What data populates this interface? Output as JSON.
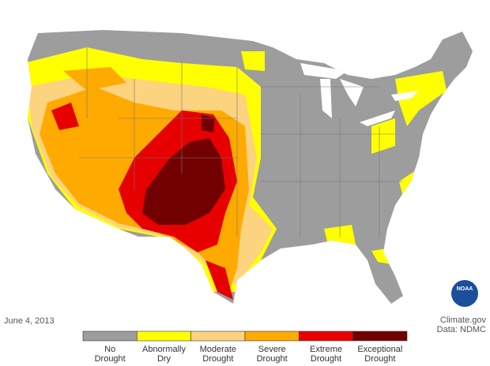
{
  "map": {
    "date": "June 4, 2013",
    "credits": [
      "Climate.gov",
      "Data: NDMC"
    ],
    "logo": "NOAA",
    "legend": [
      {
        "label": [
          "No",
          "Drought"
        ],
        "color": "#9d9d9d"
      },
      {
        "label": [
          "Abnormally",
          "Dry"
        ],
        "color": "#ffff00"
      },
      {
        "label": [
          "Moderate",
          "Drought"
        ],
        "color": "#fcd37f"
      },
      {
        "label": [
          "Severe",
          "Drought"
        ],
        "color": "#ffaa00"
      },
      {
        "label": [
          "Extreme",
          "Drought"
        ],
        "color": "#e60000"
      },
      {
        "label": [
          "Exceptional",
          "Drought"
        ],
        "color": "#730000"
      }
    ]
  }
}
